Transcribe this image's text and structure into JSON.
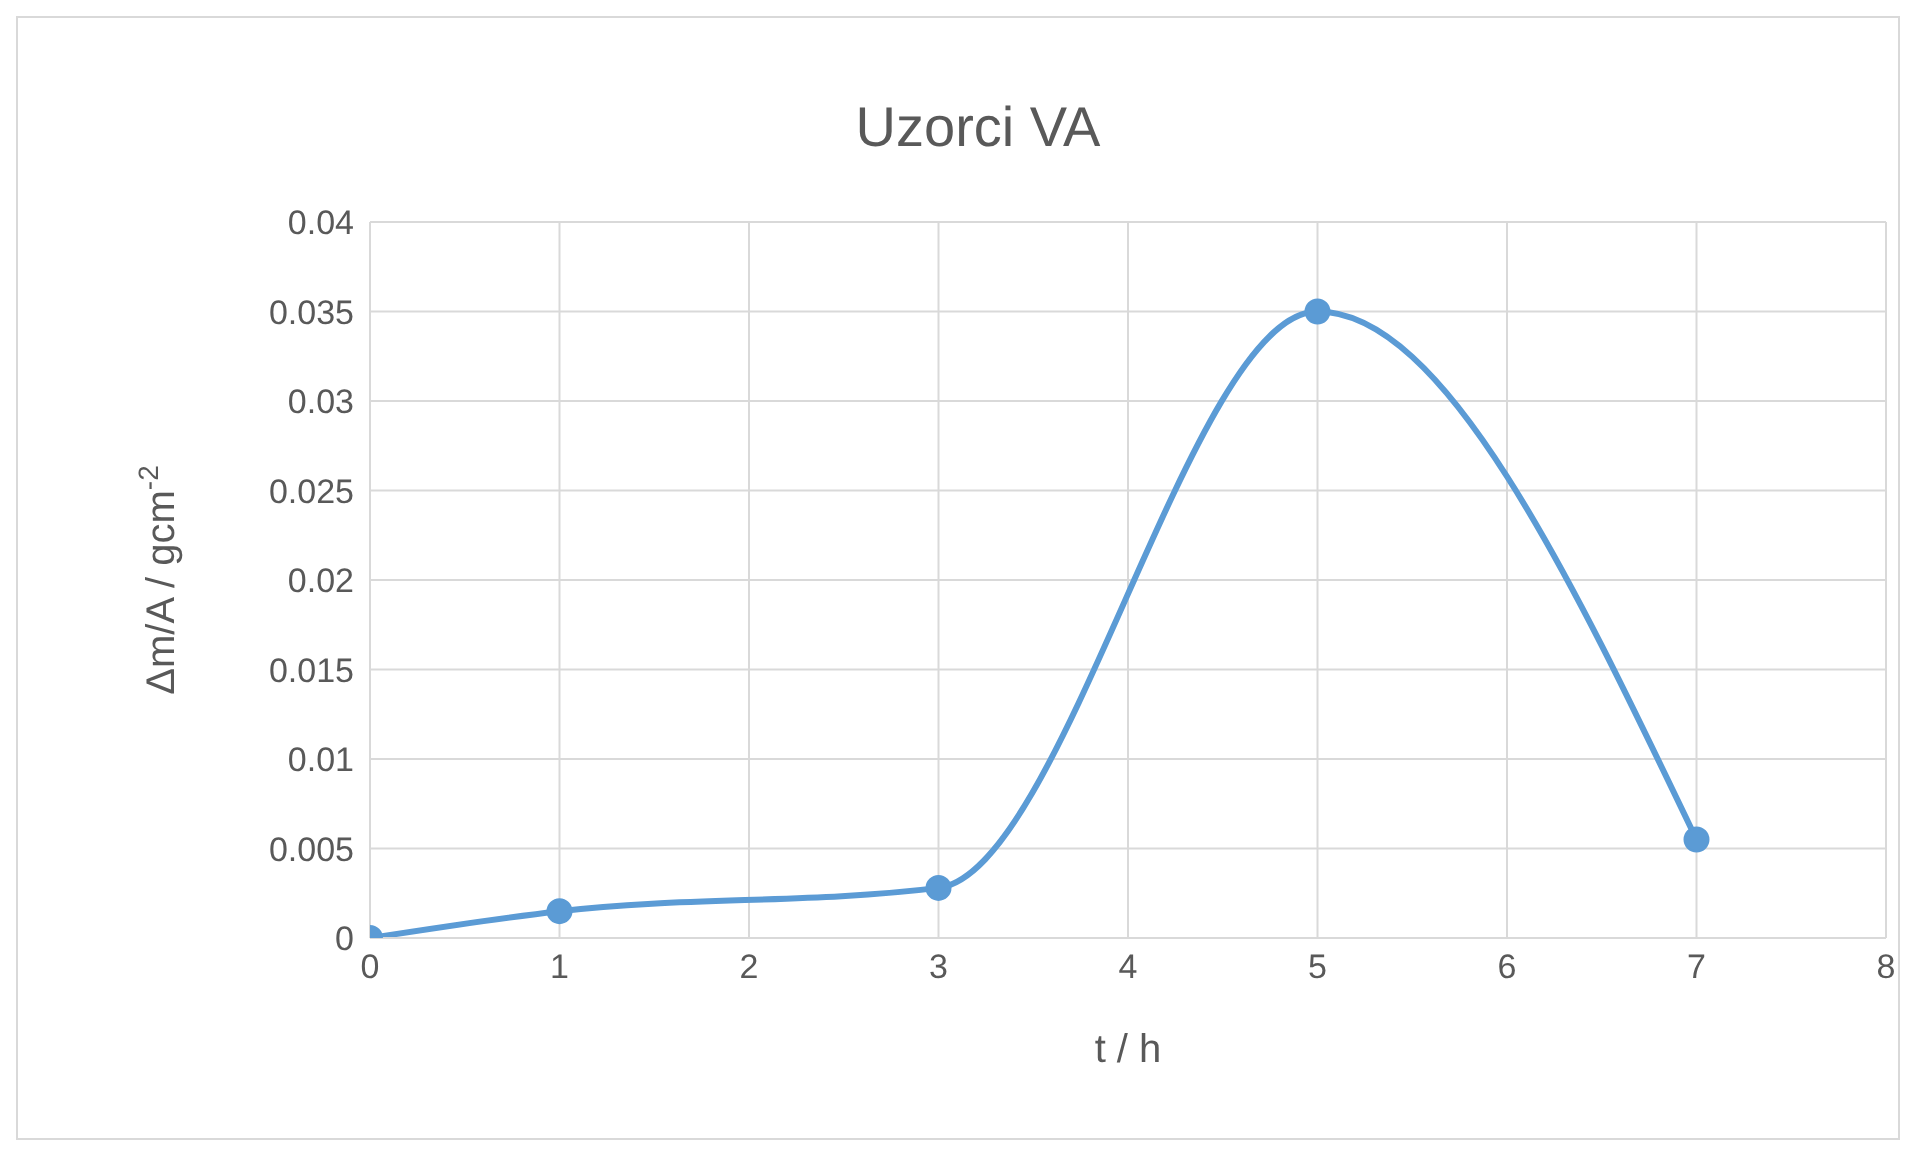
{
  "chart_data": {
    "type": "line",
    "title": "Uzorci VA",
    "xlabel": "t / h",
    "ylabel": "Δm/A  / gcm$^{-2}$",
    "x": [
      0,
      1,
      3,
      5,
      7
    ],
    "series": [
      {
        "color": "#5b9bd5",
        "values": [
          0,
          0.0015,
          0.0028,
          0.035,
          0.0055
        ]
      }
    ],
    "xlim": [
      0,
      8
    ],
    "xticks": [
      0,
      1,
      2,
      3,
      4,
      5,
      6,
      7,
      8
    ],
    "ylim": [
      0,
      0.04
    ],
    "yticks": [
      0,
      0.005,
      0.01,
      0.015,
      0.02,
      0.025,
      0.03,
      0.035,
      0.04
    ],
    "grid": true,
    "marker": "circle",
    "line_style": "solid"
  }
}
